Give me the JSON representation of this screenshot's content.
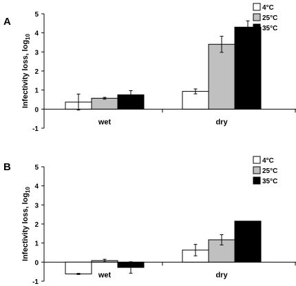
{
  "chart_data": [
    {
      "type": "bar",
      "panel_label": "A",
      "categories": [
        "wet",
        "dry"
      ],
      "ylabel_main": "Infectivity loss, log",
      "ylabel_sub": "10",
      "ylim": [
        -1,
        5
      ],
      "yticks": [
        "-1",
        "0",
        "1",
        "2",
        "3",
        "4",
        "5"
      ],
      "grid": false,
      "legend_position": "top-right",
      "series": [
        {
          "name": "4°C",
          "color": "#ffffff",
          "values": [
            0.37,
            0.93
          ],
          "errors": [
            0.42,
            0.13
          ]
        },
        {
          "name": "25°C",
          "color": "#c0c0c0",
          "values": [
            0.57,
            3.4
          ],
          "errors": [
            0.05,
            0.42
          ]
        },
        {
          "name": "35°C",
          "color": "#000000",
          "values": [
            0.75,
            4.3
          ],
          "errors": [
            0.22,
            0.33
          ]
        }
      ]
    },
    {
      "type": "bar",
      "panel_label": "B",
      "categories": [
        "wet",
        "dry"
      ],
      "ylabel_main": "Infectivity loss, log",
      "ylabel_sub": "10",
      "ylim": [
        -1,
        5
      ],
      "yticks": [
        "-1",
        "0",
        "1",
        "2",
        "3",
        "4",
        "5"
      ],
      "grid": false,
      "legend_position": "top-right",
      "series": [
        {
          "name": "4°C",
          "color": "#ffffff",
          "values": [
            -0.62,
            0.63
          ],
          "errors": [
            0.03,
            0.3
          ]
        },
        {
          "name": "25°C",
          "color": "#c0c0c0",
          "values": [
            0.08,
            1.17
          ],
          "errors": [
            0.07,
            0.27
          ]
        },
        {
          "name": "35°C",
          "color": "#000000",
          "values": [
            -0.28,
            2.15
          ],
          "errors": [
            0.3,
            0.0
          ]
        }
      ]
    }
  ]
}
